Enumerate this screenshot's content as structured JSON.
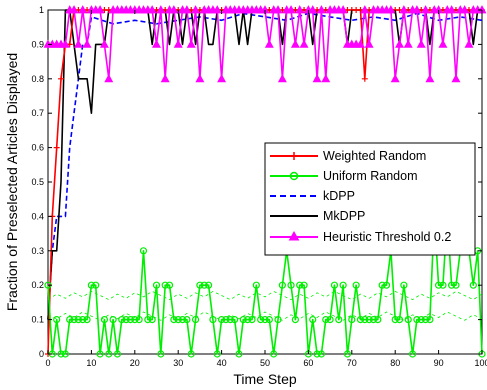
{
  "chart_data": {
    "type": "line",
    "xlabel": "Time Step",
    "ylabel": "Fraction of Preselected Articles Displayed",
    "xlim": [
      0,
      100
    ],
    "ylim": [
      0,
      1
    ],
    "xticks": [
      "0",
      "10",
      "20",
      "30",
      "40",
      "50",
      "60",
      "70",
      "80",
      "90",
      "100"
    ],
    "yticks": [
      "0",
      "0.1",
      "0.2",
      "0.3",
      "0.4",
      "0.5",
      "0.6",
      "0.7",
      "0.8",
      "0.9",
      "1"
    ],
    "grid": false,
    "legend_position": "center-right",
    "series": [
      {
        "name": "Weighted Random",
        "color": "#ff0000",
        "marker": "plus",
        "line": "solid",
        "x": [
          0,
          1,
          2,
          3,
          4,
          5,
          6,
          7,
          8,
          9,
          10,
          11,
          12,
          13,
          14,
          15,
          16,
          17,
          18,
          19,
          20,
          21,
          22,
          23,
          24,
          25,
          26,
          27,
          28,
          29,
          30,
          31,
          32,
          33,
          34,
          35,
          36,
          37,
          38,
          39,
          40,
          41,
          42,
          43,
          44,
          45,
          46,
          47,
          48,
          49,
          50,
          51,
          52,
          53,
          54,
          55,
          56,
          57,
          58,
          59,
          60,
          61,
          62,
          63,
          64,
          65,
          66,
          67,
          68,
          69,
          70,
          71,
          72,
          73,
          74,
          75,
          76,
          77,
          78,
          79,
          80,
          81,
          82,
          83,
          84,
          85,
          86,
          87,
          88,
          89,
          90,
          91,
          92,
          93,
          94,
          95,
          96,
          97,
          98,
          99,
          100
        ],
        "y": [
          0,
          0.4,
          0.6,
          0.8,
          0.9,
          0.9,
          1,
          1,
          1,
          1,
          1,
          1,
          1,
          1,
          1,
          1,
          1,
          1,
          1,
          1,
          1,
          1,
          1,
          1,
          1,
          1,
          1,
          1,
          1,
          1,
          1,
          1,
          1,
          1,
          1,
          1,
          1,
          1,
          1,
          1,
          1,
          1,
          1,
          1,
          1,
          1,
          1,
          1,
          1,
          1,
          1,
          1,
          1,
          1,
          1,
          1,
          1,
          1,
          1,
          1,
          1,
          1,
          1,
          1,
          1,
          1,
          1,
          1,
          1,
          1,
          1,
          1,
          1,
          0.8,
          1,
          1,
          1,
          1,
          1,
          1,
          1,
          1,
          1,
          1,
          1,
          1,
          1,
          1,
          1,
          1,
          1,
          1,
          1,
          1,
          1,
          1,
          1,
          1,
          1,
          1,
          1
        ]
      },
      {
        "name": "Uniform Random",
        "color": "#00ee00",
        "marker": "circle",
        "line": "solid",
        "x": [
          0,
          1,
          2,
          3,
          4,
          5,
          6,
          7,
          8,
          9,
          10,
          11,
          12,
          13,
          14,
          15,
          16,
          17,
          18,
          19,
          20,
          21,
          22,
          23,
          24,
          25,
          26,
          27,
          28,
          29,
          30,
          31,
          32,
          33,
          34,
          35,
          36,
          37,
          38,
          39,
          40,
          41,
          42,
          43,
          44,
          45,
          46,
          47,
          48,
          49,
          50,
          51,
          52,
          53,
          54,
          55,
          56,
          57,
          58,
          59,
          60,
          61,
          62,
          63,
          64,
          65,
          66,
          67,
          68,
          69,
          70,
          71,
          72,
          73,
          74,
          75,
          76,
          77,
          78,
          79,
          80,
          81,
          82,
          83,
          84,
          85,
          86,
          87,
          88,
          89,
          90,
          91,
          92,
          93,
          94,
          95,
          96,
          97,
          98,
          99,
          100
        ],
        "y": [
          0.2,
          0,
          0.1,
          0,
          0,
          0.1,
          0.1,
          0.1,
          0.1,
          0.1,
          0.2,
          0.2,
          0,
          0.1,
          0,
          0.1,
          0,
          0.1,
          0.1,
          0.1,
          0.1,
          0.1,
          0.3,
          0.1,
          0.1,
          0.2,
          0,
          0.2,
          0.2,
          0.1,
          0.1,
          0.1,
          0.1,
          0,
          0.1,
          0.2,
          0.2,
          0.2,
          0.1,
          0,
          0.1,
          0.1,
          0.1,
          0.1,
          0,
          0.1,
          0.1,
          0.1,
          0.2,
          0.1,
          0.1,
          0.1,
          0,
          0.1,
          0.2,
          0.3,
          0.2,
          0.1,
          0.2,
          0.2,
          0,
          0.1,
          0,
          0,
          0.1,
          0.1,
          0.2,
          0.1,
          0.2,
          0,
          0.1,
          0.2,
          0.1,
          0.1,
          0.1,
          0.1,
          0.1,
          0.2,
          0.2,
          0.3,
          0.1,
          0.1,
          0.2,
          0.1,
          0,
          0.1,
          0.1,
          0.1,
          0.1,
          0.4,
          0.2,
          0.2,
          0.4,
          0.2,
          0.2,
          0.3,
          0.3,
          0.3,
          0.2,
          0.3,
          0
        ],
        "band_upper": 0.17,
        "band_lower": 0.11
      },
      {
        "name": "kDPP",
        "color": "#0000ff",
        "marker": "none",
        "line": "dashed",
        "x": [
          0,
          1,
          2,
          3,
          4,
          5,
          6,
          7,
          8,
          9,
          10,
          15,
          20,
          25,
          30,
          35,
          40,
          45,
          50,
          55,
          60,
          65,
          70,
          75,
          80,
          85,
          90,
          95,
          100
        ],
        "y": [
          0.1,
          0.3,
          0.4,
          0.4,
          0.4,
          0.6,
          0.7,
          0.8,
          0.9,
          0.9,
          0.98,
          0.96,
          0.97,
          0.96,
          0.97,
          0.98,
          0.97,
          0.99,
          0.98,
          0.97,
          0.99,
          0.98,
          0.97,
          0.98,
          0.97,
          0.99,
          0.97,
          0.98,
          0.97
        ]
      },
      {
        "name": "MkDPP",
        "color": "#000000",
        "marker": "none",
        "line": "solid",
        "x": [
          0,
          1,
          2,
          3,
          4,
          5,
          6,
          7,
          8,
          9,
          10,
          11,
          12,
          13,
          14,
          15,
          16,
          17,
          18,
          19,
          20,
          21,
          22,
          23,
          24,
          25,
          26,
          27,
          28,
          29,
          30,
          31,
          32,
          33,
          34,
          35,
          36,
          37,
          38,
          39,
          40,
          41,
          42,
          43,
          44,
          45,
          46,
          47,
          48,
          49,
          50,
          51,
          52,
          53,
          54,
          55,
          56,
          57,
          58,
          59,
          60,
          61,
          62,
          63,
          64,
          65,
          66,
          67,
          68,
          69,
          70,
          71,
          72,
          73,
          74,
          75,
          76,
          77,
          78,
          79,
          80,
          81,
          82,
          83,
          84,
          85,
          86,
          87,
          88,
          89,
          90,
          91,
          92,
          93,
          94,
          95,
          96,
          97,
          98,
          99,
          100
        ],
        "y": [
          0.1,
          0.3,
          0.3,
          0.5,
          1,
          1,
          0.9,
          0.8,
          0.8,
          0.8,
          0.7,
          0.9,
          0.9,
          0.9,
          1,
          1,
          1,
          1,
          1,
          1,
          1,
          1,
          1,
          1,
          0.9,
          1,
          1,
          1,
          0.9,
          1,
          1,
          0.9,
          1,
          1,
          0.9,
          1,
          1,
          0.9,
          0.9,
          1,
          1,
          1,
          1,
          1,
          0.9,
          1,
          0.9,
          1,
          1,
          1,
          1,
          1,
          1,
          1,
          0.9,
          1,
          1,
          1,
          1,
          1,
          1,
          0.9,
          1,
          1,
          1,
          1,
          1,
          1,
          1,
          0.9,
          1,
          1,
          1,
          1,
          1,
          1,
          1,
          1,
          1,
          1,
          1,
          0.9,
          1,
          1,
          1,
          1,
          1,
          1,
          0.9,
          1,
          1,
          1,
          1,
          1,
          1,
          1,
          1,
          1,
          0.9,
          1,
          1
        ]
      },
      {
        "name": "Heuristic Threshold 0.2",
        "color": "#ff00ff",
        "marker": "triangle",
        "line": "solid",
        "x": [
          0,
          1,
          2,
          3,
          4,
          5,
          6,
          7,
          8,
          9,
          10,
          11,
          12,
          13,
          14,
          15,
          16,
          17,
          18,
          19,
          20,
          21,
          22,
          23,
          24,
          25,
          26,
          27,
          28,
          29,
          30,
          31,
          32,
          33,
          34,
          35,
          36,
          37,
          38,
          39,
          40,
          41,
          42,
          43,
          44,
          45,
          46,
          47,
          48,
          49,
          50,
          51,
          52,
          53,
          54,
          55,
          56,
          57,
          58,
          59,
          60,
          61,
          62,
          63,
          64,
          65,
          66,
          67,
          68,
          69,
          70,
          71,
          72,
          73,
          74,
          75,
          76,
          77,
          78,
          79,
          80,
          81,
          82,
          83,
          84,
          85,
          86,
          87,
          88,
          89,
          90,
          91,
          92,
          93,
          94,
          95,
          96,
          97,
          98,
          99,
          100
        ],
        "y": [
          0.9,
          0.9,
          0.9,
          0.9,
          0.9,
          1,
          1,
          0.9,
          1,
          0.9,
          1,
          1,
          1,
          0.9,
          0.8,
          1,
          1,
          1,
          1,
          1,
          1,
          1,
          1,
          1,
          1,
          0.9,
          1,
          0.8,
          1,
          1,
          0.9,
          1,
          1,
          0.9,
          1,
          0.8,
          1,
          1,
          1,
          1,
          0.8,
          1,
          1,
          1,
          1,
          1,
          1,
          1,
          1,
          1,
          1,
          0.9,
          1,
          1,
          0.8,
          1,
          1,
          0.9,
          1,
          0.9,
          1,
          1,
          0.8,
          1,
          0.8,
          1,
          1,
          1,
          1,
          0.9,
          0.9,
          0.9,
          0.9,
          1,
          0.9,
          1,
          1,
          1,
          1,
          1,
          0.8,
          0.9,
          1,
          0.9,
          1,
          1,
          0.9,
          1,
          0.8,
          1,
          1,
          0.9,
          1,
          1,
          0.8,
          1,
          1,
          0.9,
          1,
          1,
          1
        ]
      }
    ]
  }
}
